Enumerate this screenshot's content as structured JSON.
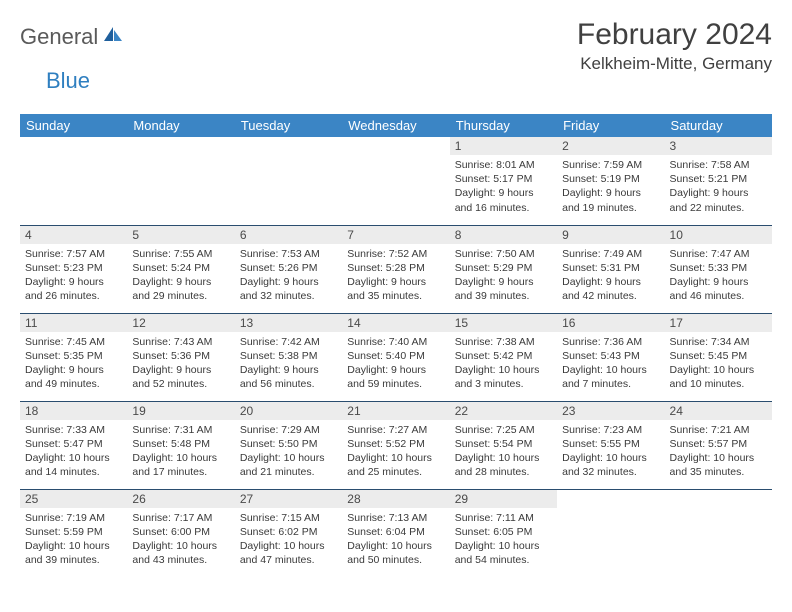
{
  "logo": {
    "text1": "General",
    "text2": "Blue",
    "text_color": "#5a5a5a",
    "accent_color": "#2f7fc0"
  },
  "title": "February 2024",
  "location": "Kelkheim-Mitte, Germany",
  "header_bg": "#3b85c5",
  "header_text": "#ffffff",
  "daynum_bg": "#ececec",
  "row_border": "#2a4d6f",
  "font_day": 12,
  "font_body": 10.5,
  "weekdays": [
    "Sunday",
    "Monday",
    "Tuesday",
    "Wednesday",
    "Thursday",
    "Friday",
    "Saturday"
  ],
  "weeks": [
    [
      null,
      null,
      null,
      null,
      {
        "n": "1",
        "sr": "8:01 AM",
        "ss": "5:17 PM",
        "dl": "9 hours and 16 minutes."
      },
      {
        "n": "2",
        "sr": "7:59 AM",
        "ss": "5:19 PM",
        "dl": "9 hours and 19 minutes."
      },
      {
        "n": "3",
        "sr": "7:58 AM",
        "ss": "5:21 PM",
        "dl": "9 hours and 22 minutes."
      }
    ],
    [
      {
        "n": "4",
        "sr": "7:57 AM",
        "ss": "5:23 PM",
        "dl": "9 hours and 26 minutes."
      },
      {
        "n": "5",
        "sr": "7:55 AM",
        "ss": "5:24 PM",
        "dl": "9 hours and 29 minutes."
      },
      {
        "n": "6",
        "sr": "7:53 AM",
        "ss": "5:26 PM",
        "dl": "9 hours and 32 minutes."
      },
      {
        "n": "7",
        "sr": "7:52 AM",
        "ss": "5:28 PM",
        "dl": "9 hours and 35 minutes."
      },
      {
        "n": "8",
        "sr": "7:50 AM",
        "ss": "5:29 PM",
        "dl": "9 hours and 39 minutes."
      },
      {
        "n": "9",
        "sr": "7:49 AM",
        "ss": "5:31 PM",
        "dl": "9 hours and 42 minutes."
      },
      {
        "n": "10",
        "sr": "7:47 AM",
        "ss": "5:33 PM",
        "dl": "9 hours and 46 minutes."
      }
    ],
    [
      {
        "n": "11",
        "sr": "7:45 AM",
        "ss": "5:35 PM",
        "dl": "9 hours and 49 minutes."
      },
      {
        "n": "12",
        "sr": "7:43 AM",
        "ss": "5:36 PM",
        "dl": "9 hours and 52 minutes."
      },
      {
        "n": "13",
        "sr": "7:42 AM",
        "ss": "5:38 PM",
        "dl": "9 hours and 56 minutes."
      },
      {
        "n": "14",
        "sr": "7:40 AM",
        "ss": "5:40 PM",
        "dl": "9 hours and 59 minutes."
      },
      {
        "n": "15",
        "sr": "7:38 AM",
        "ss": "5:42 PM",
        "dl": "10 hours and 3 minutes."
      },
      {
        "n": "16",
        "sr": "7:36 AM",
        "ss": "5:43 PM",
        "dl": "10 hours and 7 minutes."
      },
      {
        "n": "17",
        "sr": "7:34 AM",
        "ss": "5:45 PM",
        "dl": "10 hours and 10 minutes."
      }
    ],
    [
      {
        "n": "18",
        "sr": "7:33 AM",
        "ss": "5:47 PM",
        "dl": "10 hours and 14 minutes."
      },
      {
        "n": "19",
        "sr": "7:31 AM",
        "ss": "5:48 PM",
        "dl": "10 hours and 17 minutes."
      },
      {
        "n": "20",
        "sr": "7:29 AM",
        "ss": "5:50 PM",
        "dl": "10 hours and 21 minutes."
      },
      {
        "n": "21",
        "sr": "7:27 AM",
        "ss": "5:52 PM",
        "dl": "10 hours and 25 minutes."
      },
      {
        "n": "22",
        "sr": "7:25 AM",
        "ss": "5:54 PM",
        "dl": "10 hours and 28 minutes."
      },
      {
        "n": "23",
        "sr": "7:23 AM",
        "ss": "5:55 PM",
        "dl": "10 hours and 32 minutes."
      },
      {
        "n": "24",
        "sr": "7:21 AM",
        "ss": "5:57 PM",
        "dl": "10 hours and 35 minutes."
      }
    ],
    [
      {
        "n": "25",
        "sr": "7:19 AM",
        "ss": "5:59 PM",
        "dl": "10 hours and 39 minutes."
      },
      {
        "n": "26",
        "sr": "7:17 AM",
        "ss": "6:00 PM",
        "dl": "10 hours and 43 minutes."
      },
      {
        "n": "27",
        "sr": "7:15 AM",
        "ss": "6:02 PM",
        "dl": "10 hours and 47 minutes."
      },
      {
        "n": "28",
        "sr": "7:13 AM",
        "ss": "6:04 PM",
        "dl": "10 hours and 50 minutes."
      },
      {
        "n": "29",
        "sr": "7:11 AM",
        "ss": "6:05 PM",
        "dl": "10 hours and 54 minutes."
      },
      null,
      null
    ]
  ],
  "labels": {
    "sunrise": "Sunrise:",
    "sunset": "Sunset:",
    "daylight": "Daylight:"
  }
}
